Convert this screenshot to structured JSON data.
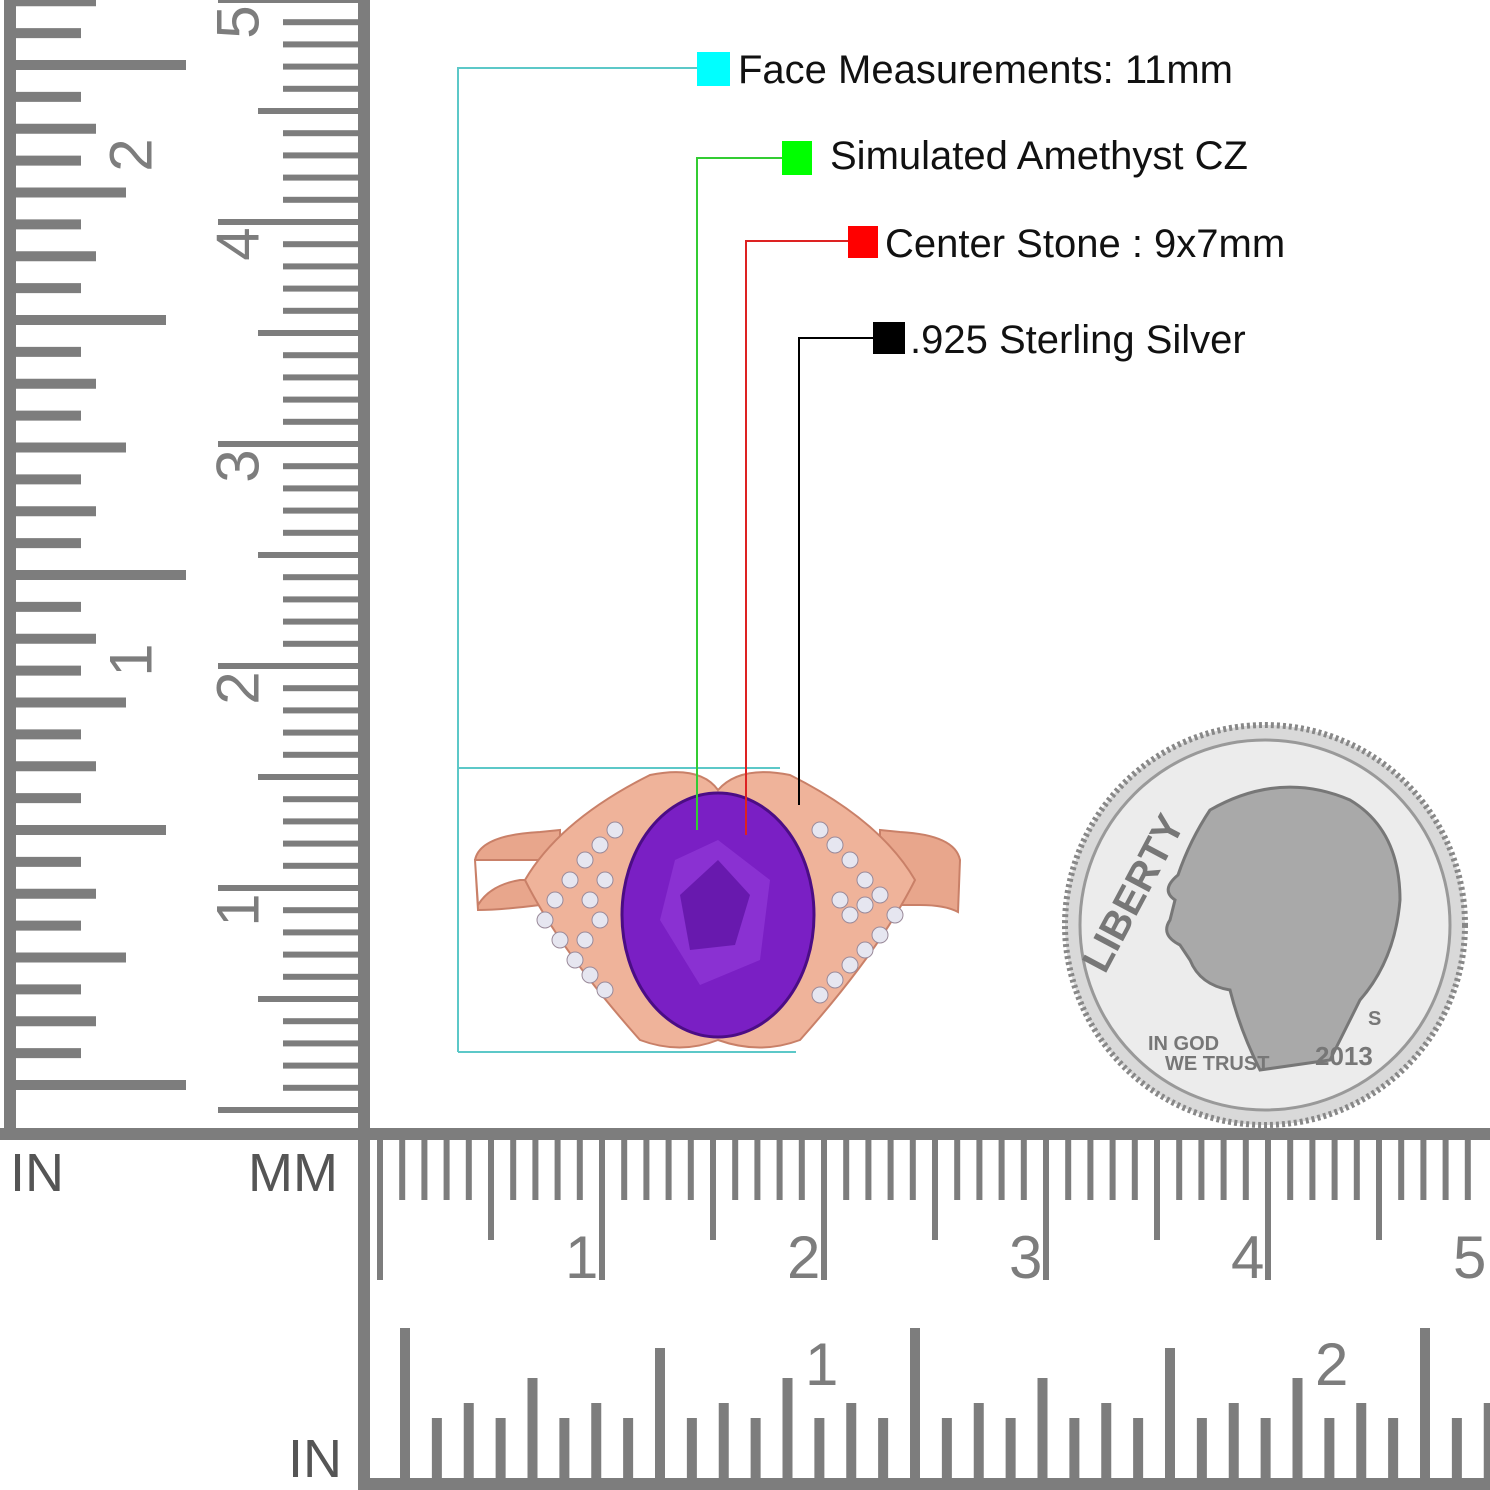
{
  "legend": {
    "face": {
      "label": "Face Measurements: 11mm",
      "color": "#00ffff",
      "line_color": "#5cc8c8"
    },
    "stone": {
      "label": "Simulated Amethyst CZ",
      "color": "#00ff00",
      "line_color": "#33cc33"
    },
    "center": {
      "label": "Center Stone : 9x7mm",
      "color": "#ff0000",
      "line_color": "#dd2222"
    },
    "metal": {
      "label": ".925 Sterling Silver",
      "color": "#000000",
      "line_color": "#000000"
    }
  },
  "rulers": {
    "color": "#7d7d7d",
    "unit_in_left": "IN",
    "unit_mm": "MM",
    "unit_in_bottom": "IN",
    "vertical_mm_labels": [
      "1",
      "2",
      "3",
      "4",
      "5"
    ],
    "vertical_in_labels": [
      "1",
      "2"
    ],
    "horizontal_mm_labels": [
      "1",
      "2",
      "3",
      "4",
      "5"
    ],
    "horizontal_in_labels": [
      "1",
      "2"
    ]
  },
  "product": {
    "metal_color": "#e8a68c",
    "stone_color": "#7a1fc4"
  },
  "coin": {
    "legend": "LIBERTY",
    "motto_1": "IN GOD",
    "motto_2": "WE TRUST",
    "year": "2013",
    "mint": "S"
  }
}
